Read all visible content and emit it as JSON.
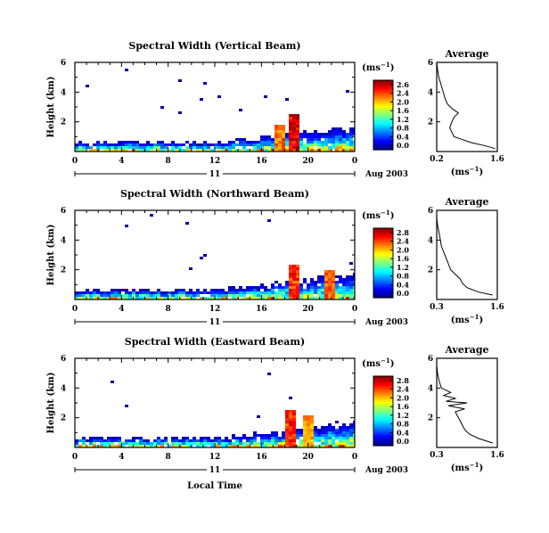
{
  "figure": {
    "xlabel": "Local Time",
    "date_label": "Aug 2003",
    "day_label": "11",
    "unit_label": "(ms",
    "unit_exponent": "−1",
    "x_ticks": [
      "0",
      "4",
      "8",
      "12",
      "16",
      "20",
      "0"
    ],
    "y_ticks": [
      "6",
      "4",
      "2"
    ],
    "avg_x_ticks": [
      "0.2",
      "1.6"
    ]
  },
  "chart_data": [
    {
      "type": "heatmap",
      "title": "Spectral Width (Vertical Beam)",
      "ylabel": "Height (km)",
      "xlim": [
        0,
        24
      ],
      "ylim": [
        0,
        6
      ],
      "colorbar": {
        "min": 0.0,
        "max": 2.6,
        "ticks": [
          "2.6",
          "2.4",
          "2.0",
          "1.6",
          "1.2",
          "0.8",
          "0.4",
          "0.0"
        ]
      },
      "features": [
        {
          "time": 18.8,
          "height_top": 2.5,
          "value": 2.6
        },
        {
          "time": 17.5,
          "height_top": 1.8,
          "value": 2.2
        }
      ],
      "average": {
        "title": "Average",
        "xlim": [
          0.2,
          1.6
        ],
        "ylim": [
          0,
          6
        ],
        "xlabel": "(ms",
        "profile": [
          [
            1.55,
            0.2
          ],
          [
            1.3,
            0.4
          ],
          [
            1.0,
            0.6
          ],
          [
            0.8,
            0.8
          ],
          [
            0.6,
            1.0
          ],
          [
            0.55,
            1.3
          ],
          [
            0.5,
            1.6
          ],
          [
            0.55,
            2.0
          ],
          [
            0.6,
            2.3
          ],
          [
            0.7,
            2.6
          ],
          [
            0.55,
            2.9
          ],
          [
            0.45,
            3.2
          ],
          [
            0.4,
            3.5
          ],
          [
            0.35,
            4.0
          ],
          [
            0.3,
            4.5
          ],
          [
            0.25,
            5.0
          ],
          [
            0.22,
            5.5
          ],
          [
            0.2,
            6.0
          ]
        ]
      }
    },
    {
      "type": "heatmap",
      "title": "Spectral Width (Northward Beam)",
      "ylabel": "Height (km)",
      "xlim": [
        0,
        24
      ],
      "ylim": [
        0,
        6
      ],
      "colorbar": {
        "min": 0.0,
        "max": 2.8,
        "ticks": [
          "2.8",
          "2.4",
          "2.0",
          "1.6",
          "1.2",
          "0.8",
          "0.4",
          "0.0"
        ]
      },
      "features": [
        {
          "time": 18.7,
          "height_top": 2.3,
          "value": 2.6
        },
        {
          "time": 21.8,
          "height_top": 2.0,
          "value": 2.4
        }
      ],
      "average": {
        "title": "Average",
        "xlim": [
          0.3,
          1.6
        ],
        "ylim": [
          0,
          6
        ],
        "xlabel": "(ms",
        "profile": [
          [
            1.5,
            0.3
          ],
          [
            1.2,
            0.5
          ],
          [
            0.95,
            0.8
          ],
          [
            0.85,
            1.1
          ],
          [
            0.8,
            1.4
          ],
          [
            0.7,
            1.7
          ],
          [
            0.6,
            2.0
          ],
          [
            0.55,
            2.4
          ],
          [
            0.5,
            2.8
          ],
          [
            0.45,
            3.2
          ],
          [
            0.4,
            3.6
          ],
          [
            0.38,
            4.0
          ],
          [
            0.35,
            4.5
          ],
          [
            0.32,
            5.0
          ],
          [
            0.3,
            5.5
          ],
          [
            0.3,
            6.0
          ]
        ]
      }
    },
    {
      "type": "heatmap",
      "title": "Spectral Width (Eastward Beam)",
      "ylabel": "Height (km)",
      "xlim": [
        0,
        24
      ],
      "ylim": [
        0,
        6
      ],
      "colorbar": {
        "min": 0.0,
        "max": 2.8,
        "ticks": [
          "2.8",
          "2.4",
          "2.0",
          "1.6",
          "1.2",
          "0.8",
          "0.4",
          "0.0"
        ]
      },
      "features": [
        {
          "time": 18.5,
          "height_top": 2.6,
          "value": 2.6
        },
        {
          "time": 20.0,
          "height_top": 2.2,
          "value": 2.2
        }
      ],
      "average": {
        "title": "Average",
        "xlim": [
          0.3,
          1.6
        ],
        "ylim": [
          0,
          6
        ],
        "xlabel": "(ms",
        "profile": [
          [
            1.5,
            0.3
          ],
          [
            1.2,
            0.6
          ],
          [
            1.0,
            0.9
          ],
          [
            0.9,
            1.2
          ],
          [
            0.85,
            1.5
          ],
          [
            0.8,
            1.8
          ],
          [
            0.75,
            2.1
          ],
          [
            0.7,
            2.4
          ],
          [
            0.9,
            2.6
          ],
          [
            0.55,
            2.8
          ],
          [
            0.95,
            3.0
          ],
          [
            0.5,
            3.1
          ],
          [
            0.7,
            3.3
          ],
          [
            0.45,
            3.5
          ],
          [
            0.6,
            3.7
          ],
          [
            0.4,
            4.0
          ],
          [
            0.35,
            4.5
          ],
          [
            0.32,
            5.0
          ],
          [
            0.3,
            5.5
          ],
          [
            0.3,
            6.0
          ]
        ]
      }
    }
  ]
}
